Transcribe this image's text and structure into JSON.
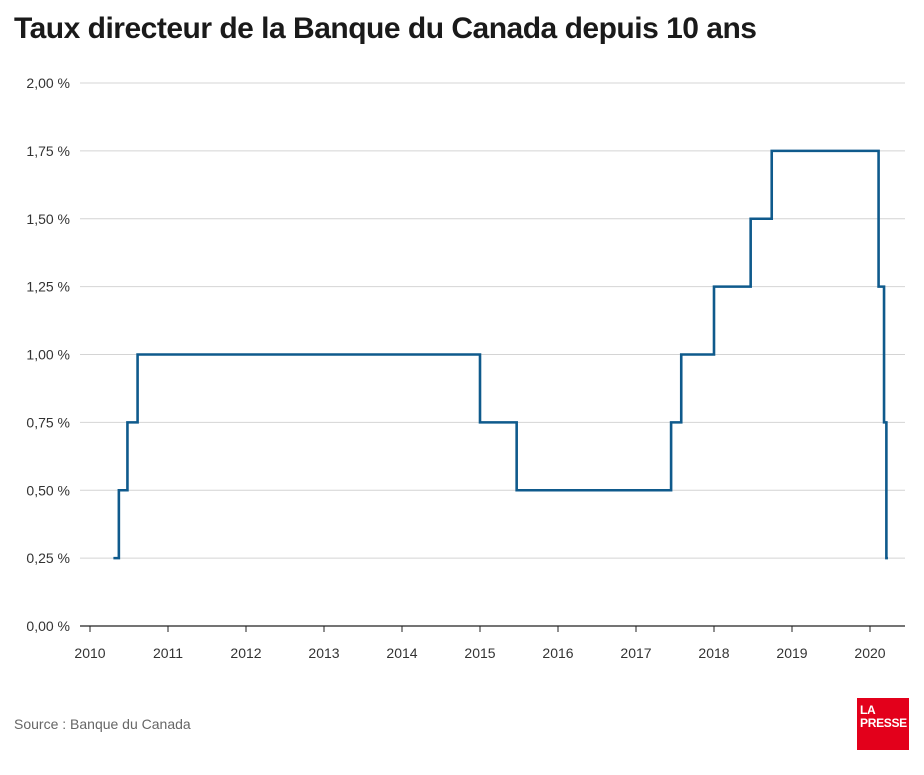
{
  "chart_data": {
    "type": "line",
    "step": true,
    "title": "Taux directeur de la Banque du Canada depuis 10 ans",
    "xlabel": "",
    "ylabel": "",
    "xlim": [
      2010,
      2020.4
    ],
    "ylim": [
      0,
      2
    ],
    "x_ticks": [
      2010,
      2011,
      2012,
      2013,
      2014,
      2015,
      2016,
      2017,
      2018,
      2019,
      2020
    ],
    "x_tick_labels": [
      "2010",
      "2011",
      "2012",
      "2013",
      "2014",
      "2015",
      "2016",
      "2017",
      "2018",
      "2019",
      "2020"
    ],
    "y_ticks": [
      0,
      0.25,
      0.5,
      0.75,
      1.0,
      1.25,
      1.5,
      1.75,
      2.0
    ],
    "y_tick_labels": [
      "0,00 %",
      "0,25 %",
      "0,50 %",
      "0,75 %",
      "1,00 %",
      "1,25 %",
      "1,50 %",
      "1,75 %",
      "2,00 %"
    ],
    "grid": "horizontal",
    "line_color": "#0f5a8c",
    "series": [
      {
        "name": "",
        "x": [
          2010.3,
          2010.37,
          2010.48,
          2010.61,
          2015.0,
          2015.47,
          2017.45,
          2017.58,
          2018.0,
          2018.47,
          2018.74,
          2020.11,
          2020.18,
          2020.21
        ],
        "values": [
          0.25,
          0.5,
          0.75,
          1.0,
          0.75,
          0.5,
          0.75,
          1.0,
          1.25,
          1.5,
          1.75,
          1.25,
          0.75,
          0.25
        ],
        "x_end": 2020.23
      }
    ]
  },
  "source": "Source : Banque du Canada",
  "logo": {
    "line1": "LA",
    "line2": "PRESSE",
    "color": "#e3001b"
  }
}
